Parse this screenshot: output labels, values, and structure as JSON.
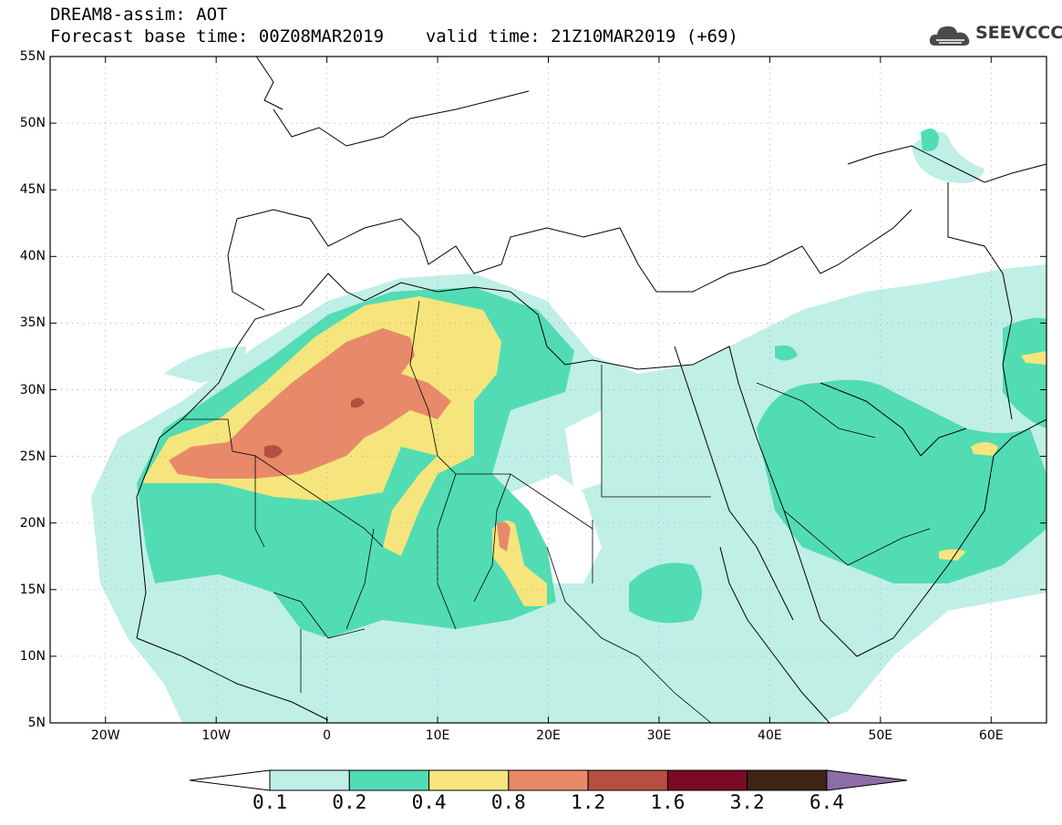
{
  "header": {
    "title": "DREAM8-assim: AOT",
    "base_time": "Forecast base time: 00Z08MAR2019",
    "valid_time": "valid time: 21Z10MAR2019 (+69)"
  },
  "logo": {
    "text": "SEEVCCC",
    "icon": "cloud-icon"
  },
  "map": {
    "lat_range": [
      5,
      55
    ],
    "lon_range": [
      -25,
      65
    ],
    "lat_ticks": [
      "5N",
      "10N",
      "15N",
      "20N",
      "25N",
      "30N",
      "35N",
      "40N",
      "45N",
      "50N",
      "55N"
    ],
    "lon_ticks": [
      "20W",
      "10W",
      "0",
      "10E",
      "20E",
      "30E",
      "40E",
      "50E",
      "60E"
    ]
  },
  "colorbar": {
    "levels": [
      "0.1",
      "0.2",
      "0.4",
      "0.8",
      "1.2",
      "1.6",
      "3.2",
      "6.4"
    ],
    "colors": [
      "#ffffff",
      "#c0efe6",
      "#52dcb4",
      "#f5e57c",
      "#e8896a",
      "#b54f3f",
      "#7a0a25",
      "#3d2415",
      "#8d6da8"
    ]
  }
}
